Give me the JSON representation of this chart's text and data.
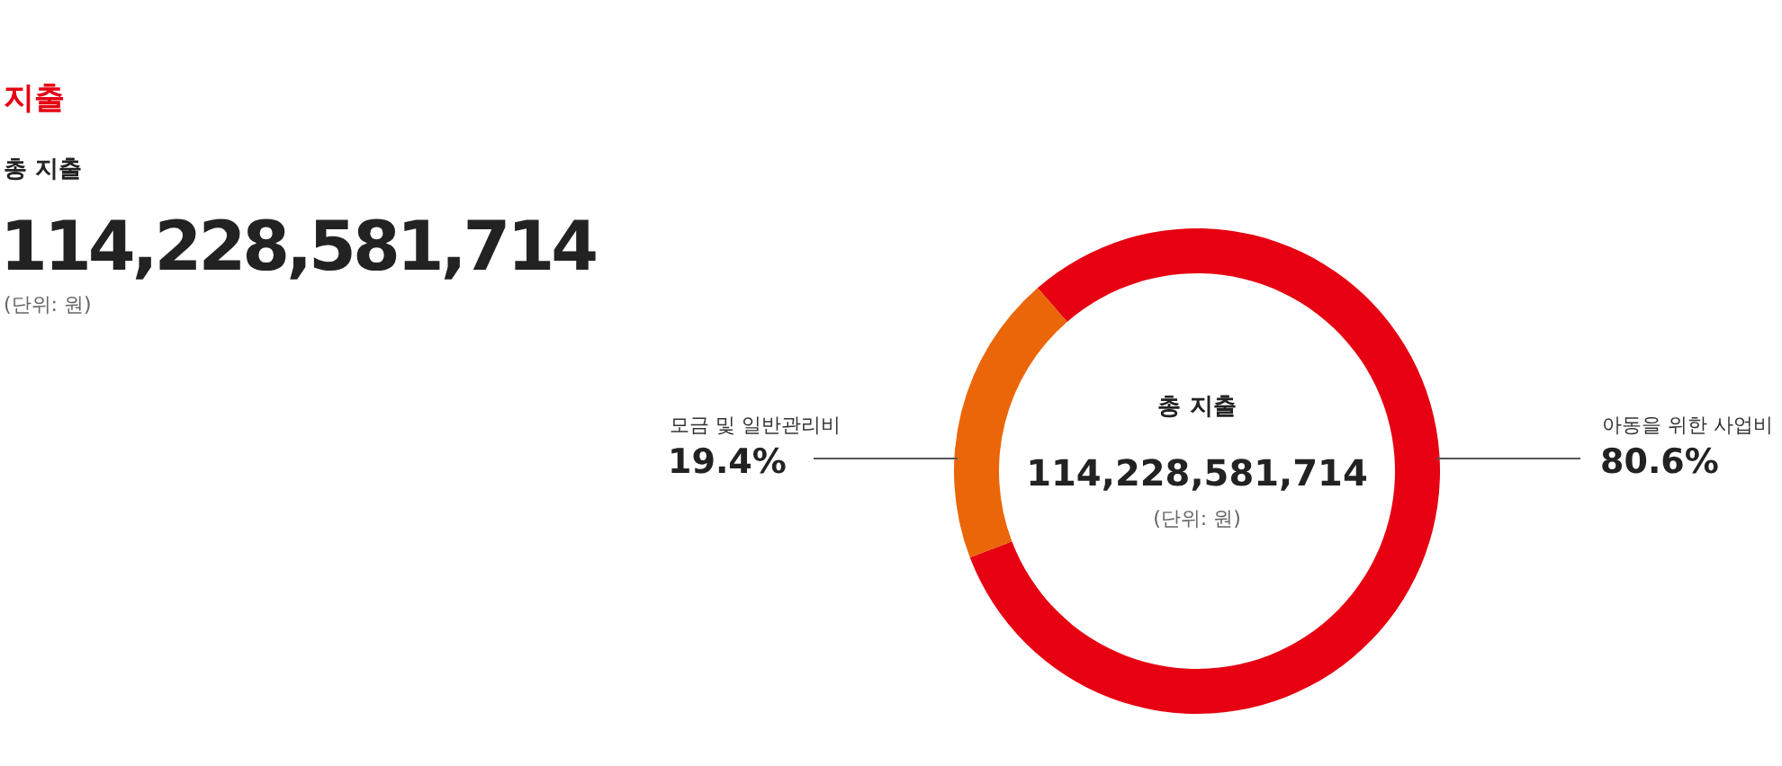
{
  "chart_data": {
    "type": "donut",
    "title": "지출",
    "annotations": [
      "총 지출",
      "114,228,581,714",
      "(단위: 원)"
    ],
    "categories": [
      "아동을 위한 사업비",
      "모금 및 일반관리비"
    ],
    "values": [
      80.6,
      19.4
    ],
    "colors": [
      "#e60012",
      "#eb6608"
    ],
    "value_labels": [
      "80.6%",
      "19.4%"
    ]
  }
}
